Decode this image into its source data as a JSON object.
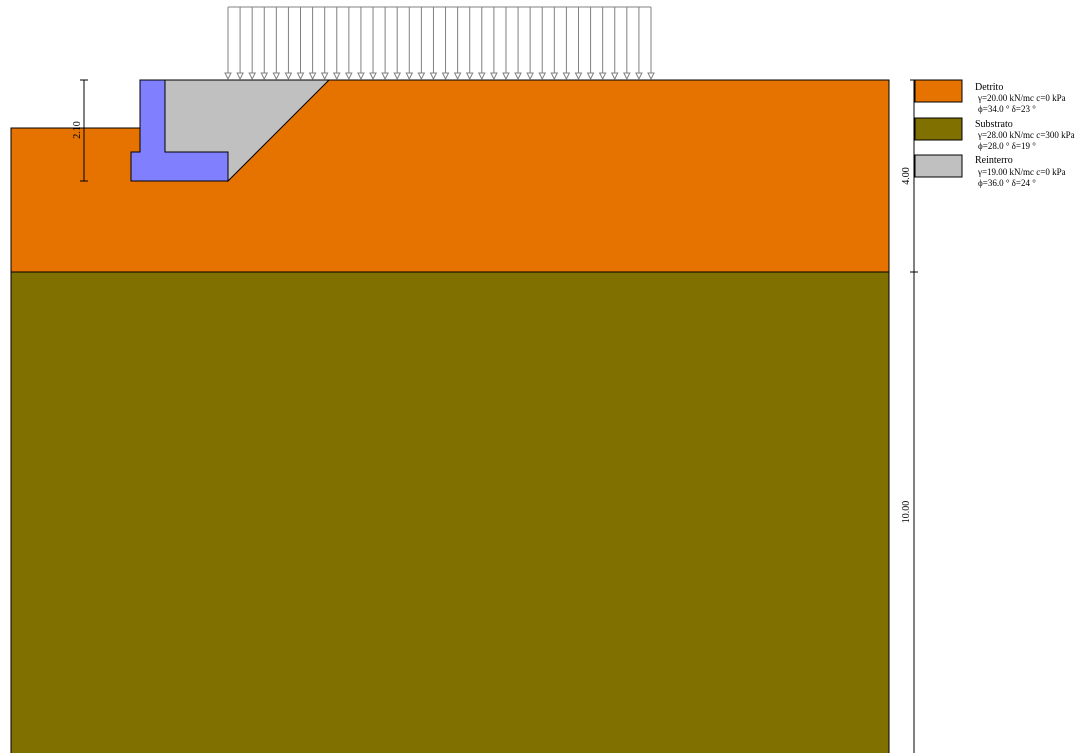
{
  "diagram": {
    "type": "retaining-wall-section",
    "colors": {
      "detrito": "#E67300",
      "substrato": "#807000",
      "reinterro": "#C0C0C0",
      "wall": "#8080FF",
      "outline": "#000000",
      "load_arrows": "#808080"
    },
    "dimensions": {
      "wall_height": "2.10",
      "detrito_thickness": "4.00",
      "substrato_thickness": "10.00"
    },
    "surface_load": {
      "arrow_count": 36
    }
  },
  "legend": [
    {
      "name": "Detrito",
      "color": "#E67300",
      "line1": "γ=20.00 kN/mc c=0 kPa",
      "line2": "ϕ=34.0 °  δ=23 °"
    },
    {
      "name": "Substrato",
      "color": "#807000",
      "line1": "γ=28.00 kN/mc c=300 kPa",
      "line2": "ϕ=28.0 °  δ=19 °"
    },
    {
      "name": "Reinterro",
      "color": "#C0C0C0",
      "line1": "γ=19.00 kN/mc c=0 kPa",
      "line2": "ϕ=36.0 °  δ=24 °"
    }
  ]
}
